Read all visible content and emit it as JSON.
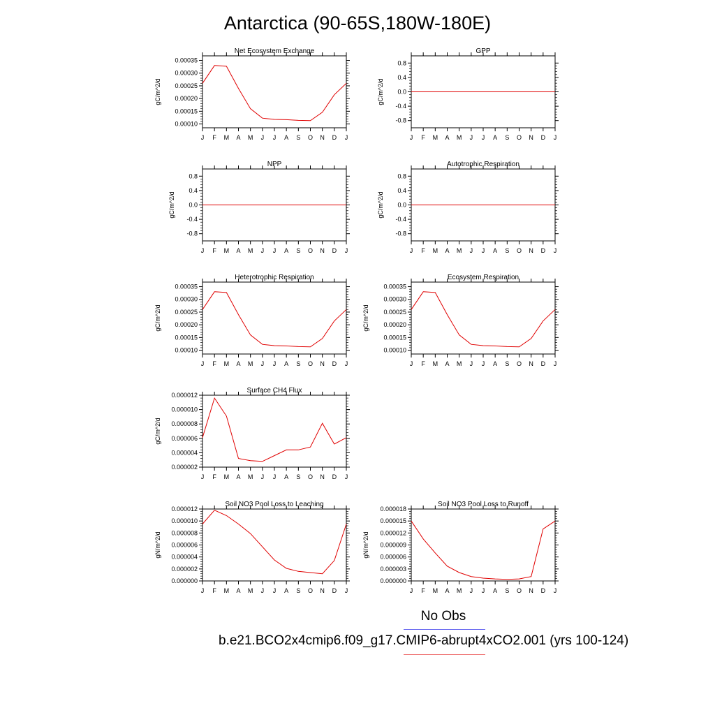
{
  "title": "Antarctica (90-65S,180W-180E)",
  "legend": {
    "no_obs": "No Obs",
    "case": "b.e21.BCO2x4cmip6.f09_g17.CMIP6-abrupt4xCO2.001 (yrs 100-124)",
    "obs_color": "#6b6bf0",
    "case_color": "#ee6b6b"
  },
  "line_color": "#e00000",
  "chart_data": [
    {
      "type": "line",
      "title": "Net Ecosystem Exchange",
      "ylabel": "gC/m^2/d",
      "x": [
        "J",
        "F",
        "M",
        "A",
        "M",
        "J",
        "J",
        "A",
        "S",
        "O",
        "N",
        "D",
        "J"
      ],
      "ylim": [
        8.5e-05,
        0.000368
      ],
      "yticks": [
        0.0001,
        0.00015,
        0.0002,
        0.00025,
        0.0003,
        0.00035
      ],
      "ytick_labels": [
        "0.00010",
        "0.00015",
        "0.00020",
        "0.00025",
        "0.00030",
        "0.00035"
      ],
      "values": [
        0.00026,
        0.00033,
        0.000327,
        0.00024,
        0.00016,
        0.000123,
        0.000118,
        0.000117,
        0.000114,
        0.000113,
        0.000146,
        0.000215,
        0.00026
      ]
    },
    {
      "type": "line",
      "title": "GPP",
      "ylabel": "gC/m^2/d",
      "x": [
        "J",
        "F",
        "M",
        "A",
        "M",
        "J",
        "J",
        "A",
        "S",
        "O",
        "N",
        "D",
        "J"
      ],
      "ylim": [
        -1.0,
        1.0
      ],
      "yticks": [
        -0.8,
        -0.4,
        0.0,
        0.4,
        0.8
      ],
      "ytick_labels": [
        "-0.8",
        "-0.4",
        "0.0",
        "0.4",
        "0.8"
      ],
      "values": [
        0,
        0,
        0,
        0,
        0,
        0,
        0,
        0,
        0,
        0,
        0,
        0,
        0
      ]
    },
    {
      "type": "line",
      "title": "NPP",
      "ylabel": "gC/m^2/d",
      "x": [
        "J",
        "F",
        "M",
        "A",
        "M",
        "J",
        "J",
        "A",
        "S",
        "O",
        "N",
        "D",
        "J"
      ],
      "ylim": [
        -1.0,
        1.0
      ],
      "yticks": [
        -0.8,
        -0.4,
        0.0,
        0.4,
        0.8
      ],
      "ytick_labels": [
        "-0.8",
        "-0.4",
        "0.0",
        "0.4",
        "0.8"
      ],
      "values": [
        0,
        0,
        0,
        0,
        0,
        0,
        0,
        0,
        0,
        0,
        0,
        0,
        0
      ]
    },
    {
      "type": "line",
      "title": "Autotrophic Respiration",
      "ylabel": "gC/m^2/d",
      "x": [
        "J",
        "F",
        "M",
        "A",
        "M",
        "J",
        "J",
        "A",
        "S",
        "O",
        "N",
        "D",
        "J"
      ],
      "ylim": [
        -1.0,
        1.0
      ],
      "yticks": [
        -0.8,
        -0.4,
        0.0,
        0.4,
        0.8
      ],
      "ytick_labels": [
        "-0.8",
        "-0.4",
        "0.0",
        "0.4",
        "0.8"
      ],
      "values": [
        0,
        0,
        0,
        0,
        0,
        0,
        0,
        0,
        0,
        0,
        0,
        0,
        0
      ]
    },
    {
      "type": "line",
      "title": "Heterotrophic Respiration",
      "ylabel": "gC/m^2/d",
      "x": [
        "J",
        "F",
        "M",
        "A",
        "M",
        "J",
        "J",
        "A",
        "S",
        "O",
        "N",
        "D",
        "J"
      ],
      "ylim": [
        8.5e-05,
        0.000368
      ],
      "yticks": [
        0.0001,
        0.00015,
        0.0002,
        0.00025,
        0.0003,
        0.00035
      ],
      "ytick_labels": [
        "0.00010",
        "0.00015",
        "0.00020",
        "0.00025",
        "0.00030",
        "0.00035"
      ],
      "values": [
        0.00026,
        0.00033,
        0.000327,
        0.00024,
        0.00016,
        0.000123,
        0.000118,
        0.000117,
        0.000114,
        0.000113,
        0.000146,
        0.000215,
        0.00026
      ]
    },
    {
      "type": "line",
      "title": "Ecosystem Respiration",
      "ylabel": "gC/m^2/d",
      "x": [
        "J",
        "F",
        "M",
        "A",
        "M",
        "J",
        "J",
        "A",
        "S",
        "O",
        "N",
        "D",
        "J"
      ],
      "ylim": [
        8.5e-05,
        0.000368
      ],
      "yticks": [
        0.0001,
        0.00015,
        0.0002,
        0.00025,
        0.0003,
        0.00035
      ],
      "ytick_labels": [
        "0.00010",
        "0.00015",
        "0.00020",
        "0.00025",
        "0.00030",
        "0.00035"
      ],
      "values": [
        0.00026,
        0.00033,
        0.000327,
        0.00024,
        0.00016,
        0.000123,
        0.000118,
        0.000117,
        0.000114,
        0.000113,
        0.000146,
        0.000215,
        0.00026
      ]
    },
    {
      "type": "line",
      "title": "Surface CH4 Flux",
      "ylabel": "gC/m^2/d",
      "x": [
        "J",
        "F",
        "M",
        "A",
        "M",
        "J",
        "J",
        "A",
        "S",
        "O",
        "N",
        "D",
        "J"
      ],
      "ylim": [
        2e-06,
        1.2e-05
      ],
      "yticks": [
        2e-06,
        4e-06,
        6e-06,
        8e-06,
        1e-05,
        1.2e-05
      ],
      "ytick_labels": [
        "0.000002",
        "0.000004",
        "0.000006",
        "0.000008",
        "0.000010",
        "0.000012"
      ],
      "values": [
        6.1e-06,
        1.16e-05,
        9.1e-06,
        3.2e-06,
        2.9e-06,
        2.8e-06,
        3.6e-06,
        4.4e-06,
        4.4e-06,
        4.8e-06,
        8.1e-06,
        5.2e-06,
        6.1e-06
      ]
    },
    {
      "type": "line",
      "title": "Soil NO3 Pool Loss to Leaching",
      "ylabel": "gN/m^2/d",
      "x": [
        "J",
        "F",
        "M",
        "A",
        "M",
        "J",
        "J",
        "A",
        "S",
        "O",
        "N",
        "D",
        "J"
      ],
      "ylim": [
        0.0,
        1.2e-05
      ],
      "yticks": [
        0.0,
        2e-06,
        4e-06,
        6e-06,
        8e-06,
        1e-05,
        1.2e-05
      ],
      "ytick_labels": [
        "0.000000",
        "0.000002",
        "0.000004",
        "0.000006",
        "0.000008",
        "0.000010",
        "0.000012"
      ],
      "values": [
        9.5e-06,
        1.18e-05,
        1.09e-05,
        9.5e-06,
        7.9e-06,
        5.7e-06,
        3.5e-06,
        2.1e-06,
        1.6e-06,
        1.4e-06,
        1.2e-06,
        3.4e-06,
        9.5e-06
      ]
    },
    {
      "type": "line",
      "title": "Soil NO3 Pool Loss to Runoff",
      "ylabel": "gN/m^2/d",
      "x": [
        "J",
        "F",
        "M",
        "A",
        "M",
        "J",
        "J",
        "A",
        "S",
        "O",
        "N",
        "D",
        "J"
      ],
      "ylim": [
        0.0,
        1.8e-05
      ],
      "yticks": [
        0.0,
        3e-06,
        6e-06,
        9e-06,
        1.2e-05,
        1.5e-05,
        1.8e-05
      ],
      "ytick_labels": [
        "0.000000",
        "0.000003",
        "0.000006",
        "0.000009",
        "0.000012",
        "0.000015",
        "0.000018"
      ],
      "values": [
        1.5e-05,
        1.05e-05,
        7e-06,
        3.7e-06,
        2.1e-06,
        1.1e-06,
        7e-07,
        5e-07,
        4e-07,
        5e-07,
        1.1e-06,
        1.3e-05,
        1.5e-05
      ]
    }
  ]
}
